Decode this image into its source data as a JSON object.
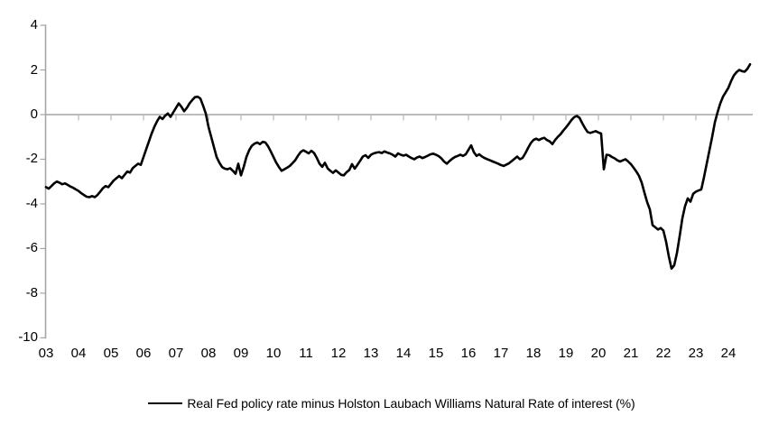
{
  "chart_data": {
    "type": "line",
    "title": "",
    "legend": {
      "label": "Real Fed policy rate minus Holston Laubach Williams Natural Rate of interest (%)",
      "position": "bottom-center",
      "marker": "line"
    },
    "x_axis": {
      "frequency": "monthly",
      "start_year": 2003,
      "tick_labels": [
        "03",
        "04",
        "05",
        "06",
        "07",
        "08",
        "09",
        "10",
        "11",
        "12",
        "13",
        "14",
        "15",
        "16",
        "17",
        "18",
        "19",
        "20",
        "21",
        "22",
        "23",
        "24"
      ],
      "xlim_years": [
        2003,
        2024.8
      ]
    },
    "y_axis": {
      "tick_labels": [
        "4",
        "2",
        "0",
        "-2",
        "-4",
        "-6",
        "-8",
        "-10"
      ],
      "tick_values": [
        4,
        2,
        0,
        -2,
        -4,
        -6,
        -8,
        -10
      ],
      "ylim": [
        -10,
        4
      ],
      "zero_axis_line": true
    },
    "grid": "none",
    "colors": {
      "series": "#000000",
      "axis": "#a6a6a6",
      "axis_minor_tick": "#b8b8b8",
      "labels": "#000000",
      "background": "#ffffff"
    },
    "series": [
      {
        "name": "Real Fed policy rate minus Holston Laubach Williams Natural Rate of interest (%)",
        "color": "#000000",
        "start": "2003-01",
        "values": [
          -3.25,
          -3.32,
          -3.2,
          -3.08,
          -3.0,
          -3.05,
          -3.12,
          -3.08,
          -3.15,
          -3.22,
          -3.28,
          -3.35,
          -3.42,
          -3.52,
          -3.6,
          -3.68,
          -3.7,
          -3.65,
          -3.7,
          -3.6,
          -3.45,
          -3.3,
          -3.2,
          -3.25,
          -3.1,
          -2.95,
          -2.85,
          -2.75,
          -2.85,
          -2.7,
          -2.55,
          -2.6,
          -2.4,
          -2.3,
          -2.2,
          -2.25,
          -1.9,
          -1.55,
          -1.2,
          -0.85,
          -0.55,
          -0.3,
          -0.1,
          -0.2,
          -0.05,
          0.05,
          -0.1,
          0.1,
          0.3,
          0.5,
          0.35,
          0.15,
          0.3,
          0.5,
          0.65,
          0.78,
          0.8,
          0.72,
          0.4,
          0.05,
          -0.55,
          -1.0,
          -1.45,
          -1.9,
          -2.15,
          -2.35,
          -2.42,
          -2.45,
          -2.4,
          -2.52,
          -2.65,
          -2.2,
          -2.72,
          -2.35,
          -1.9,
          -1.6,
          -1.4,
          -1.3,
          -1.25,
          -1.32,
          -1.22,
          -1.25,
          -1.42,
          -1.65,
          -1.9,
          -2.15,
          -2.35,
          -2.52,
          -2.45,
          -2.38,
          -2.3,
          -2.18,
          -2.05,
          -1.85,
          -1.68,
          -1.6,
          -1.66,
          -1.74,
          -1.62,
          -1.72,
          -1.94,
          -2.2,
          -2.34,
          -2.16,
          -2.41,
          -2.52,
          -2.61,
          -2.5,
          -2.6,
          -2.7,
          -2.72,
          -2.58,
          -2.48,
          -2.22,
          -2.42,
          -2.25,
          -2.07,
          -1.88,
          -1.82,
          -1.94,
          -1.8,
          -1.74,
          -1.7,
          -1.68,
          -1.72,
          -1.65,
          -1.7,
          -1.74,
          -1.8,
          -1.88,
          -1.74,
          -1.8,
          -1.84,
          -1.8,
          -1.88,
          -1.95,
          -2.0,
          -1.92,
          -1.88,
          -1.95,
          -1.9,
          -1.84,
          -1.78,
          -1.75,
          -1.8,
          -1.86,
          -1.96,
          -2.1,
          -2.2,
          -2.08,
          -1.98,
          -1.9,
          -1.85,
          -1.8,
          -1.85,
          -1.78,
          -1.58,
          -1.38,
          -1.68,
          -1.85,
          -1.78,
          -1.88,
          -1.95,
          -2.0,
          -2.05,
          -2.1,
          -2.15,
          -2.2,
          -2.26,
          -2.3,
          -2.24,
          -2.18,
          -2.08,
          -1.98,
          -1.88,
          -2.0,
          -1.94,
          -1.74,
          -1.5,
          -1.28,
          -1.14,
          -1.08,
          -1.14,
          -1.08,
          -1.04,
          -1.14,
          -1.2,
          -1.32,
          -1.14,
          -1.0,
          -0.88,
          -0.72,
          -0.58,
          -0.42,
          -0.25,
          -0.12,
          -0.06,
          -0.14,
          -0.38,
          -0.6,
          -0.78,
          -0.82,
          -0.78,
          -0.74,
          -0.8,
          -0.85,
          -2.45,
          -1.8,
          -1.82,
          -1.9,
          -1.96,
          -2.05,
          -2.1,
          -2.05,
          -2.0,
          -2.1,
          -2.22,
          -2.38,
          -2.55,
          -2.75,
          -3.05,
          -3.5,
          -3.92,
          -4.25,
          -4.95,
          -5.05,
          -5.15,
          -5.08,
          -5.2,
          -5.7,
          -6.35,
          -6.9,
          -6.75,
          -6.2,
          -5.45,
          -4.65,
          -4.1,
          -3.75,
          -3.9,
          -3.55,
          -3.45,
          -3.4,
          -3.35,
          -2.8,
          -2.2,
          -1.6,
          -1.0,
          -0.35,
          0.1,
          0.5,
          0.8,
          1.0,
          1.2,
          1.5,
          1.75,
          1.9,
          2.0,
          1.95,
          1.92,
          2.05,
          2.25
        ]
      }
    ]
  }
}
